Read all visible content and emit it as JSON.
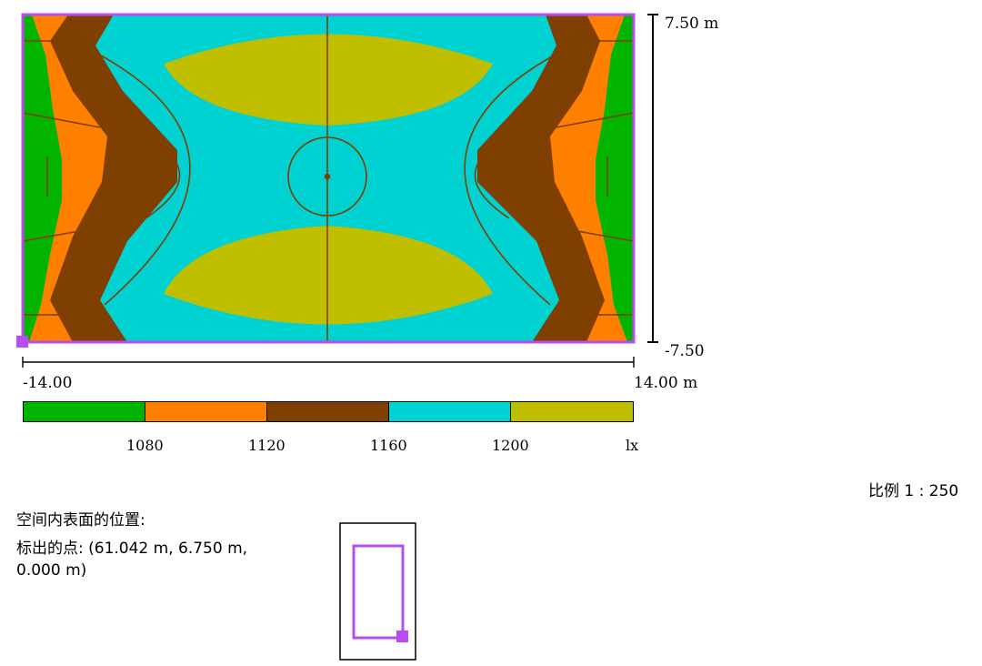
{
  "axes": {
    "y_top_label": "7.50 m",
    "y_bottom_label": "-7.50",
    "x_left_label": "-14.00",
    "x_right_label": "14.00 m"
  },
  "legend": {
    "bands": [
      {
        "color": "#00b400"
      },
      {
        "color": "#ff8000"
      },
      {
        "color": "#7f3f00"
      },
      {
        "color": "#00d2d2"
      },
      {
        "color": "#bfbf00"
      }
    ],
    "tick_labels": [
      "1080",
      "1120",
      "1160",
      "1200",
      "lx"
    ]
  },
  "scale_text": "比例 1 : 250",
  "position": {
    "heading": "空间内表面的位置:",
    "point_label": "标出的点: (61.042 m, 6.750 m, 0.000 m)"
  },
  "colors": {
    "frame": "#b84cf0",
    "court_lines": "#7f3f00"
  }
}
